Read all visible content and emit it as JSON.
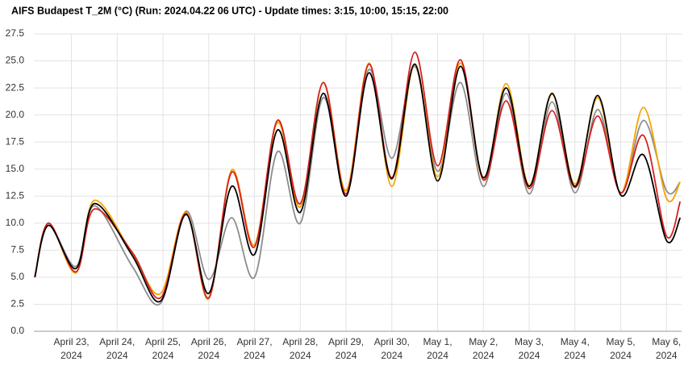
{
  "chart_data": {
    "type": "line",
    "title": "AIFS Budapest T_2M (°C) (Run: 2024.04.22 06 UTC) - Update times: 3:15, 10:00, 15:15, 22:00",
    "x": [
      -0.8,
      -0.5,
      0.1,
      0.5,
      1.33,
      1.95,
      2.5,
      3,
      3.5,
      4,
      4.5,
      5,
      5.5,
      6,
      6.5,
      7,
      7.5,
      8,
      8.5,
      9,
      9.5,
      10,
      10.5,
      11,
      11.5,
      12,
      12.5,
      13,
      13.3
    ],
    "series": [
      {
        "color": "#8c8c8c",
        "values": [
          5.0,
          9.8,
          6.0,
          11.6,
          6.0,
          2.6,
          11.1,
          4.8,
          10.5,
          5.0,
          16.6,
          10.0,
          21.6,
          13.0,
          24.2,
          16.0,
          24.5,
          14.8,
          23.0,
          13.4,
          22.0,
          12.7,
          21.2,
          12.8,
          20.5,
          12.8,
          19.5,
          13.0,
          13.8
        ]
      },
      {
        "color": "#f5a300",
        "values": [
          5.0,
          10.0,
          5.4,
          12.1,
          7.2,
          3.5,
          11.0,
          3.0,
          14.9,
          8.0,
          19.3,
          11.5,
          23.0,
          13.0,
          24.8,
          13.4,
          24.7,
          14.3,
          24.8,
          14.0,
          22.9,
          13.5,
          21.9,
          13.6,
          21.6,
          12.8,
          20.7,
          12.3,
          13.8
        ]
      },
      {
        "color": "#d62020",
        "values": [
          5.0,
          10.0,
          5.5,
          11.3,
          7.3,
          3.1,
          10.9,
          3.1,
          14.7,
          7.8,
          19.5,
          11.8,
          23.0,
          12.7,
          24.7,
          14.2,
          25.8,
          15.3,
          25.1,
          14.0,
          21.3,
          13.2,
          20.4,
          13.3,
          19.9,
          12.8,
          18.1,
          8.8,
          12.0
        ]
      },
      {
        "color": "#000000",
        "values": [
          5.0,
          9.8,
          5.8,
          11.8,
          7.0,
          2.8,
          10.8,
          3.5,
          13.4,
          7.1,
          18.6,
          11.0,
          22.0,
          12.5,
          23.9,
          14.1,
          24.7,
          13.9,
          24.5,
          14.2,
          22.5,
          13.4,
          22.0,
          13.4,
          21.8,
          12.6,
          16.3,
          8.4,
          10.5
        ]
      }
    ],
    "xlim": [
      -0.82,
      13.33
    ],
    "xticks": [
      {
        "value": 0,
        "label": "April 23, 2024"
      },
      {
        "value": 1,
        "label": "April 24, 2024"
      },
      {
        "value": 2,
        "label": "April 25, 2024"
      },
      {
        "value": 3,
        "label": "April 26, 2024"
      },
      {
        "value": 4,
        "label": "April 27, 2024"
      },
      {
        "value": 5,
        "label": "April 28, 2024"
      },
      {
        "value": 6,
        "label": "April 29, 2024"
      },
      {
        "value": 7,
        "label": "April 30, 2024"
      },
      {
        "value": 8,
        "label": "May 1, 2024"
      },
      {
        "value": 9,
        "label": "May 2, 2024"
      },
      {
        "value": 10,
        "label": "May 3, 2024"
      },
      {
        "value": 11,
        "label": "May 4, 2024"
      },
      {
        "value": 12,
        "label": "May 5, 2024"
      },
      {
        "value": 13,
        "label": "May 6, 2024"
      }
    ],
    "ylim": [
      0,
      27.5
    ],
    "yticks": [
      {
        "value": 0,
        "label": "0.0"
      },
      {
        "value": 2.5,
        "label": "2.5"
      },
      {
        "value": 5,
        "label": "5.0"
      },
      {
        "value": 7.5,
        "label": "7.5"
      },
      {
        "value": 10,
        "label": "10.0"
      },
      {
        "value": 12.5,
        "label": "12.5"
      },
      {
        "value": 15,
        "label": "15.0"
      },
      {
        "value": 17.5,
        "label": "17.5"
      },
      {
        "value": 20,
        "label": "20.0"
      },
      {
        "value": 22.5,
        "label": "22.5"
      },
      {
        "value": 25,
        "label": "25.0"
      },
      {
        "value": 27.5,
        "label": "27.5"
      }
    ],
    "grid": true
  }
}
